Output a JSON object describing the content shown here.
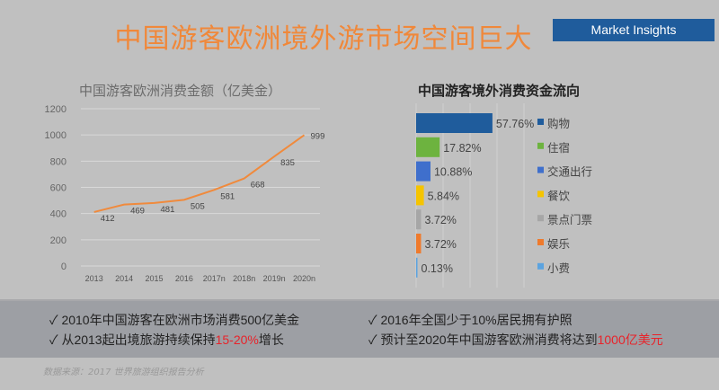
{
  "title": "中国游客欧洲境外游市场空间巨大",
  "badge": "Market Insights",
  "chart_data": [
    {
      "type": "line",
      "title": "中国游客欧洲消费金额（亿美金）",
      "categories": [
        "2013",
        "2014",
        "2015",
        "2016",
        "2017n",
        "2018n",
        "2019n",
        "2020n"
      ],
      "values": [
        412,
        469,
        481,
        505,
        581,
        668,
        835,
        999
      ],
      "yticks": [
        "0",
        "200",
        "400",
        "600",
        "800",
        "1000",
        "1200"
      ],
      "ylim": [
        0,
        1200
      ],
      "grid": true,
      "color": "#f08a3c"
    },
    {
      "type": "bar",
      "orientation": "horizontal",
      "title": "中国游客境外消费资金流向",
      "categories": [
        "购物",
        "住宿",
        "交通出行",
        "餐饮",
        "景点门票",
        "娱乐",
        "小费"
      ],
      "values": [
        57.76,
        17.82,
        10.88,
        5.84,
        3.72,
        3.72,
        0.13
      ],
      "labels": [
        "57.76%",
        "17.82%",
        "10.88%",
        "5.84%",
        "3.72%",
        "3.72%",
        "0.13%"
      ],
      "colors": [
        "#1f5c9c",
        "#6db33f",
        "#3f6fcc",
        "#f5c400",
        "#a6a6a6",
        "#ef7a2c",
        "#5ba3e0"
      ],
      "legend": "right",
      "grid": true
    }
  ],
  "points": {
    "p1": "2010年中国游客在欧洲市场消费500亿美金",
    "p2a": "从2013起出境旅游持续保持",
    "p2b": "15-20%",
    "p2c": "增长",
    "p3": "2016年全国少于10%居民拥有护照",
    "p4a": "预计至2020年中国游客欧洲消费将达到",
    "p4b": "1000亿美元",
    "check": "✓"
  },
  "source": "数据来源：2017 世界旅游组织报告分析"
}
